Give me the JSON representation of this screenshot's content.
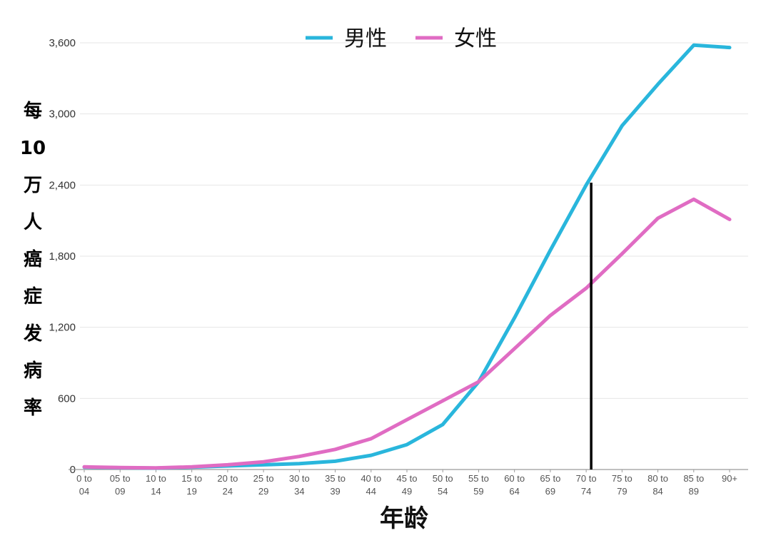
{
  "chart_data": {
    "type": "line",
    "ylabel": "每10万人癌症发病率",
    "xlabel": "年龄",
    "ylim": [
      0,
      3600
    ],
    "yticks": [
      "0",
      "600",
      "1,200",
      "1,800",
      "2,400",
      "3,000",
      "3,600"
    ],
    "ytick_values": [
      0,
      600,
      1200,
      1800,
      2400,
      3000,
      3600
    ],
    "categories": [
      [
        "0 to",
        "04"
      ],
      [
        "05 to",
        "09"
      ],
      [
        "10 to",
        "14"
      ],
      [
        "15 to",
        "19"
      ],
      [
        "20 to",
        "24"
      ],
      [
        "25 to",
        "29"
      ],
      [
        "30 to",
        "34"
      ],
      [
        "35 to",
        "39"
      ],
      [
        "40 to",
        "44"
      ],
      [
        "45 to",
        "49"
      ],
      [
        "50 to",
        "54"
      ],
      [
        "55 to",
        "59"
      ],
      [
        "60 to",
        "64"
      ],
      [
        "65 to",
        "69"
      ],
      [
        "70 to",
        "74"
      ],
      [
        "75 to",
        "79"
      ],
      [
        "80 to",
        "84"
      ],
      [
        "85 to",
        "89"
      ],
      [
        "90+",
        ""
      ]
    ],
    "series": [
      {
        "name": "男性",
        "color": "#29b6dc",
        "values": [
          20,
          15,
          12,
          20,
          30,
          40,
          50,
          70,
          120,
          210,
          380,
          740,
          1280,
          1850,
          2400,
          2900,
          3250,
          3580,
          3560
        ]
      },
      {
        "name": "女性",
        "color": "#e06cc3",
        "values": [
          22,
          16,
          14,
          22,
          40,
          65,
          110,
          170,
          260,
          420,
          580,
          740,
          1020,
          1300,
          1530,
          1820,
          2120,
          2280,
          2110
        ]
      }
    ],
    "grid": true,
    "legend_position": "top-center",
    "annotation": {
      "type": "vertical-line",
      "x_category": "70 to 74",
      "color": "#000000"
    }
  }
}
